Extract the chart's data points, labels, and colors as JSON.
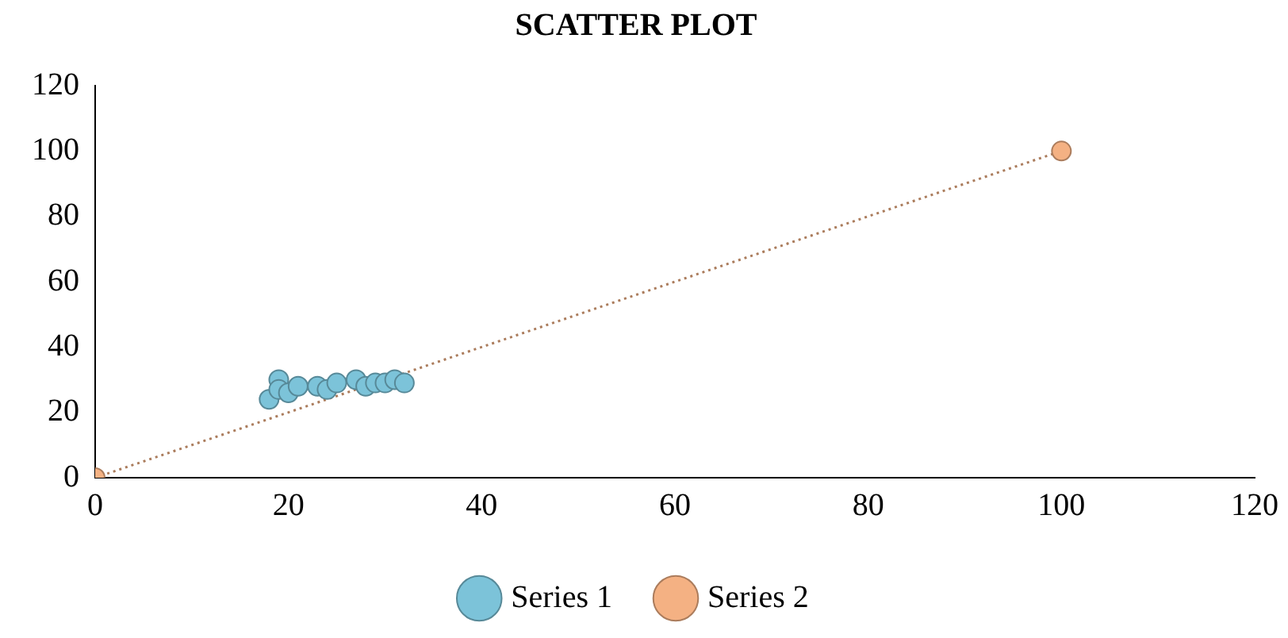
{
  "chart_data": {
    "type": "scatter",
    "title": "SCATTER PLOT",
    "xlim": [
      0,
      120
    ],
    "xticks": [
      0,
      20,
      40,
      60,
      80,
      100,
      120
    ],
    "ylim": [
      0,
      120
    ],
    "yticks": [
      0,
      20,
      40,
      60,
      80,
      100,
      120
    ],
    "grid": false,
    "legend": "bottom",
    "marker": "circle",
    "series": [
      {
        "name": "Series 1",
        "color": "#7cc3d9",
        "x": [
          18,
          19,
          19,
          20,
          21,
          23,
          24,
          25,
          27,
          28,
          29,
          30,
          31,
          32
        ],
        "values": [
          24,
          30,
          27,
          26,
          28,
          28,
          27,
          29,
          30,
          28,
          29,
          29,
          30,
          29
        ]
      },
      {
        "name": "Series 2",
        "type": "line",
        "color": "#f4b183",
        "line_style": "dotted",
        "x": [
          0,
          100
        ],
        "values": [
          0,
          100
        ]
      }
    ]
  }
}
